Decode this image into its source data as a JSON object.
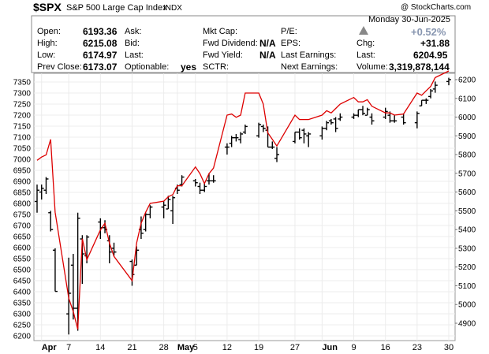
{
  "header": {
    "symbol": "$SPX",
    "name": "S&P 500 Large Cap Index",
    "exchange": "INDX",
    "copyright": "@ StockCharts.com",
    "date": "Monday 30-Jun-2025",
    "open_label": "Open:",
    "open": "6193.36",
    "high_label": "High:",
    "high": "6215.08",
    "low_label": "Low:",
    "low": "6174.97",
    "prev_close_label": "Prev Close:",
    "prev_close": "6173.07",
    "ask_label": "Ask:",
    "bid_label": "Bid:",
    "last_label": "Last:",
    "optionable_label": "Optionable:",
    "optionable": "yes",
    "mktcap_label": "Mkt Cap:",
    "fwd_div_label": "Fwd Dividend:",
    "fwd_div": "N/A",
    "fwd_yield_label": "Fwd Yield:",
    "fwd_yield": "N/A",
    "sctr_label": "SCTR:",
    "pe_label": "P/E:",
    "eps_label": "EPS:",
    "last_earn_label": "Last Earnings:",
    "next_earn_label": "Next Earnings:",
    "pct_change": "+0.52%",
    "chg_label": "Chg:",
    "chg": "+31.88",
    "last2_label": "Last:",
    "last": "6204.95",
    "volume_label": "Volume:",
    "volume": "3,319,878,144",
    "colors": {
      "up": "#888888",
      "pct": "#8896b0"
    }
  },
  "chart_data": {
    "type": "ohlc",
    "x_labels": [
      {
        "label": "Apr",
        "date": "2025-04-01",
        "bold": true
      },
      {
        "label": "7",
        "date": "2025-04-07"
      },
      {
        "label": "14",
        "date": "2025-04-14"
      },
      {
        "label": "21",
        "date": "2025-04-21"
      },
      {
        "label": "28",
        "date": "2025-04-28"
      },
      {
        "label": "May",
        "date": "2025-05-01",
        "bold": true
      },
      {
        "label": "5",
        "date": "2025-05-05"
      },
      {
        "label": "12",
        "date": "2025-05-12"
      },
      {
        "label": "19",
        "date": "2025-05-19"
      },
      {
        "label": "27",
        "date": "2025-05-27"
      },
      {
        "label": "Jun",
        "date": "2025-06-02",
        "bold": true
      },
      {
        "label": "9",
        "date": "2025-06-09"
      },
      {
        "label": "16",
        "date": "2025-06-16"
      },
      {
        "label": "23",
        "date": "2025-06-23"
      },
      {
        "label": "30",
        "date": "2025-06-30"
      }
    ],
    "left_axis": {
      "min": 6170,
      "max": 7400,
      "ticks": [
        6200,
        6250,
        6300,
        6350,
        6400,
        6450,
        6500,
        6550,
        6600,
        6650,
        6700,
        6750,
        6800,
        6850,
        6900,
        6950,
        7000,
        7050,
        7100,
        7150,
        7200,
        7250,
        7300,
        7350
      ]
    },
    "right_axis": {
      "min": 4750,
      "max": 6250,
      "ticks": [
        4900,
        5000,
        5100,
        5200,
        5300,
        5400,
        5500,
        5600,
        5700,
        5800,
        5900,
        6000,
        6100,
        6200
      ]
    },
    "line_color": "#dd0000",
    "bar_color": "#000000",
    "line_series": [
      {
        "date": "2025-03-31",
        "value": 6995
      },
      {
        "date": "2025-04-01",
        "value": 7010
      },
      {
        "date": "2025-04-02",
        "value": 7020
      },
      {
        "date": "2025-04-03",
        "value": 7090
      },
      {
        "date": "2025-04-04",
        "value": 6760
      },
      {
        "date": "2025-04-07",
        "value": 6370
      },
      {
        "date": "2025-04-08",
        "value": 6310
      },
      {
        "date": "2025-04-09",
        "value": 6230
      },
      {
        "date": "2025-04-10",
        "value": 6640
      },
      {
        "date": "2025-04-11",
        "value": 6545
      },
      {
        "date": "2025-04-14",
        "value": 6680
      },
      {
        "date": "2025-04-15",
        "value": 6710
      },
      {
        "date": "2025-04-16",
        "value": 6620
      },
      {
        "date": "2025-04-17",
        "value": 6560
      },
      {
        "date": "2025-04-21",
        "value": 6450
      },
      {
        "date": "2025-04-22",
        "value": 6620
      },
      {
        "date": "2025-04-23",
        "value": 6710
      },
      {
        "date": "2025-04-24",
        "value": 6760
      },
      {
        "date": "2025-04-25",
        "value": 6800
      },
      {
        "date": "2025-04-28",
        "value": 6810
      },
      {
        "date": "2025-04-29",
        "value": 6830
      },
      {
        "date": "2025-04-30",
        "value": 6840
      },
      {
        "date": "2025-05-01",
        "value": 6880
      },
      {
        "date": "2025-05-02",
        "value": 6880
      },
      {
        "date": "2025-05-05",
        "value": 6965
      },
      {
        "date": "2025-05-06",
        "value": 6935
      },
      {
        "date": "2025-05-07",
        "value": 6890
      },
      {
        "date": "2025-05-08",
        "value": 6935
      },
      {
        "date": "2025-05-09",
        "value": 6960
      },
      {
        "date": "2025-05-12",
        "value": 7200
      },
      {
        "date": "2025-05-13",
        "value": 7205
      },
      {
        "date": "2025-05-14",
        "value": 7190
      },
      {
        "date": "2025-05-15",
        "value": 7200
      },
      {
        "date": "2025-05-16",
        "value": 7300
      },
      {
        "date": "2025-05-19",
        "value": 7300
      },
      {
        "date": "2025-05-20",
        "value": 7250
      },
      {
        "date": "2025-05-21",
        "value": 7120
      },
      {
        "date": "2025-05-22",
        "value": 7090
      },
      {
        "date": "2025-05-23",
        "value": 7060
      },
      {
        "date": "2025-05-27",
        "value": 7200
      },
      {
        "date": "2025-05-28",
        "value": 7180
      },
      {
        "date": "2025-05-29",
        "value": 7180
      },
      {
        "date": "2025-05-30",
        "value": 7180
      },
      {
        "date": "2025-06-02",
        "value": 7200
      },
      {
        "date": "2025-06-03",
        "value": 7220
      },
      {
        "date": "2025-06-04",
        "value": 7210
      },
      {
        "date": "2025-06-05",
        "value": 7230
      },
      {
        "date": "2025-06-06",
        "value": 7250
      },
      {
        "date": "2025-06-09",
        "value": 7280
      },
      {
        "date": "2025-06-10",
        "value": 7260
      },
      {
        "date": "2025-06-11",
        "value": 7260
      },
      {
        "date": "2025-06-12",
        "value": 7270
      },
      {
        "date": "2025-06-13",
        "value": 7240
      },
      {
        "date": "2025-06-16",
        "value": 7210
      },
      {
        "date": "2025-06-17",
        "value": 7210
      },
      {
        "date": "2025-06-18",
        "value": 7200
      },
      {
        "date": "2025-06-20",
        "value": 7205
      },
      {
        "date": "2025-06-23",
        "value": 7300
      },
      {
        "date": "2025-06-24",
        "value": 7290
      },
      {
        "date": "2025-06-25",
        "value": 7310
      },
      {
        "date": "2025-06-26",
        "value": 7330
      },
      {
        "date": "2025-06-27",
        "value": 7370
      },
      {
        "date": "2025-06-30",
        "value": 7400
      }
    ],
    "ohlc_series": [
      {
        "date": "2025-03-31",
        "o": 5550,
        "h": 5640,
        "l": 5490,
        "c": 5610
      },
      {
        "date": "2025-04-01",
        "o": 5600,
        "h": 5640,
        "l": 5560,
        "c": 5620
      },
      {
        "date": "2025-04-02",
        "o": 5610,
        "h": 5680,
        "l": 5590,
        "c": 5670
      },
      {
        "date": "2025-04-03",
        "o": 5490,
        "h": 5500,
        "l": 5390,
        "c": 5400
      },
      {
        "date": "2025-04-04",
        "o": 5290,
        "h": 5300,
        "l": 5070,
        "c": 5070
      },
      {
        "date": "2025-04-07",
        "o": 4950,
        "h": 5250,
        "l": 4840,
        "c": 5060
      },
      {
        "date": "2025-04-08",
        "o": 5210,
        "h": 5270,
        "l": 4920,
        "c": 4980
      },
      {
        "date": "2025-04-09",
        "o": 4980,
        "h": 5490,
        "l": 4860,
        "c": 5460
      },
      {
        "date": "2025-04-10",
        "o": 5350,
        "h": 5370,
        "l": 5110,
        "c": 5270
      },
      {
        "date": "2025-04-11",
        "o": 5260,
        "h": 5370,
        "l": 5220,
        "c": 5360
      },
      {
        "date": "2025-04-14",
        "o": 5440,
        "h": 5460,
        "l": 5350,
        "c": 5410
      },
      {
        "date": "2025-04-15",
        "o": 5410,
        "h": 5450,
        "l": 5380,
        "c": 5400
      },
      {
        "date": "2025-04-16",
        "o": 5340,
        "h": 5370,
        "l": 5220,
        "c": 5280
      },
      {
        "date": "2025-04-17",
        "o": 5300,
        "h": 5330,
        "l": 5260,
        "c": 5280
      },
      {
        "date": "2025-04-21",
        "o": 5230,
        "h": 5240,
        "l": 5100,
        "c": 5160
      },
      {
        "date": "2025-04-22",
        "o": 5210,
        "h": 5310,
        "l": 5210,
        "c": 5290
      },
      {
        "date": "2025-04-23",
        "o": 5400,
        "h": 5470,
        "l": 5350,
        "c": 5380
      },
      {
        "date": "2025-04-24",
        "o": 5400,
        "h": 5490,
        "l": 5390,
        "c": 5480
      },
      {
        "date": "2025-04-25",
        "o": 5480,
        "h": 5530,
        "l": 5460,
        "c": 5520
      },
      {
        "date": "2025-04-28",
        "o": 5520,
        "h": 5550,
        "l": 5460,
        "c": 5530
      },
      {
        "date": "2025-04-29",
        "o": 5510,
        "h": 5580,
        "l": 5510,
        "c": 5560
      },
      {
        "date": "2025-04-30",
        "o": 5500,
        "h": 5580,
        "l": 5430,
        "c": 5570
      },
      {
        "date": "2025-05-01",
        "o": 5620,
        "h": 5640,
        "l": 5590,
        "c": 5610
      },
      {
        "date": "2025-05-02",
        "o": 5640,
        "h": 5690,
        "l": 5630,
        "c": 5680
      },
      {
        "date": "2025-05-05",
        "o": 5660,
        "h": 5670,
        "l": 5630,
        "c": 5650
      },
      {
        "date": "2025-05-06",
        "o": 5630,
        "h": 5650,
        "l": 5590,
        "c": 5610
      },
      {
        "date": "2025-05-07",
        "o": 5610,
        "h": 5650,
        "l": 5600,
        "c": 5630
      },
      {
        "date": "2025-05-08",
        "o": 5660,
        "h": 5700,
        "l": 5640,
        "c": 5660
      },
      {
        "date": "2025-05-09",
        "o": 5660,
        "h": 5690,
        "l": 5650,
        "c": 5660
      },
      {
        "date": "2025-05-12",
        "o": 5840,
        "h": 5860,
        "l": 5800,
        "c": 5840
      },
      {
        "date": "2025-05-13",
        "o": 5860,
        "h": 5900,
        "l": 5840,
        "c": 5890
      },
      {
        "date": "2025-05-14",
        "o": 5890,
        "h": 5910,
        "l": 5870,
        "c": 5890
      },
      {
        "date": "2025-05-15",
        "o": 5880,
        "h": 5920,
        "l": 5860,
        "c": 5910
      },
      {
        "date": "2025-05-16",
        "o": 5920,
        "h": 5960,
        "l": 5910,
        "c": 5950
      },
      {
        "date": "2025-05-19",
        "o": 5900,
        "h": 5970,
        "l": 5890,
        "c": 5960
      },
      {
        "date": "2025-05-20",
        "o": 5950,
        "h": 5960,
        "l": 5920,
        "c": 5940
      },
      {
        "date": "2025-05-21",
        "o": 5930,
        "h": 5950,
        "l": 5840,
        "c": 5840
      },
      {
        "date": "2025-05-22",
        "o": 5840,
        "h": 5870,
        "l": 5830,
        "c": 5840
      },
      {
        "date": "2025-05-23",
        "o": 5780,
        "h": 5840,
        "l": 5760,
        "c": 5800
      },
      {
        "date": "2025-05-27",
        "o": 5870,
        "h": 5920,
        "l": 5860,
        "c": 5920
      },
      {
        "date": "2025-05-28",
        "o": 5920,
        "h": 5940,
        "l": 5880,
        "c": 5890
      },
      {
        "date": "2025-05-29",
        "o": 5930,
        "h": 5940,
        "l": 5860,
        "c": 5910
      },
      {
        "date": "2025-05-30",
        "o": 5900,
        "h": 5920,
        "l": 5840,
        "c": 5910
      },
      {
        "date": "2025-06-02",
        "o": 5900,
        "h": 5950,
        "l": 5880,
        "c": 5940
      },
      {
        "date": "2025-06-03",
        "o": 5940,
        "h": 5980,
        "l": 5930,
        "c": 5970
      },
      {
        "date": "2025-06-04",
        "o": 5980,
        "h": 5990,
        "l": 5960,
        "c": 5970
      },
      {
        "date": "2025-06-05",
        "o": 5990,
        "h": 6000,
        "l": 5920,
        "c": 5940
      },
      {
        "date": "2025-06-06",
        "o": 5990,
        "h": 6020,
        "l": 5980,
        "c": 6000
      },
      {
        "date": "2025-06-09",
        "o": 6000,
        "h": 6020,
        "l": 5990,
        "c": 6010
      },
      {
        "date": "2025-06-10",
        "o": 6010,
        "h": 6040,
        "l": 6000,
        "c": 6040
      },
      {
        "date": "2025-06-11",
        "o": 6040,
        "h": 6060,
        "l": 6010,
        "c": 6020
      },
      {
        "date": "2025-06-12",
        "o": 6010,
        "h": 6050,
        "l": 6010,
        "c": 6040
      },
      {
        "date": "2025-06-13",
        "o": 6000,
        "h": 6020,
        "l": 5960,
        "c": 5980
      },
      {
        "date": "2025-06-16",
        "o": 6000,
        "h": 6050,
        "l": 5990,
        "c": 6030
      },
      {
        "date": "2025-06-17",
        "o": 6010,
        "h": 6030,
        "l": 5970,
        "c": 5980
      },
      {
        "date": "2025-06-18",
        "o": 5980,
        "h": 6010,
        "l": 5970,
        "c": 5980
      },
      {
        "date": "2025-06-20",
        "o": 6000,
        "h": 6020,
        "l": 5960,
        "c": 5970
      },
      {
        "date": "2025-06-23",
        "o": 5970,
        "h": 6030,
        "l": 5940,
        "c": 6020
      },
      {
        "date": "2025-06-24",
        "o": 6060,
        "h": 6090,
        "l": 6060,
        "c": 6090
      },
      {
        "date": "2025-06-25",
        "o": 6090,
        "h": 6100,
        "l": 6070,
        "c": 6090
      },
      {
        "date": "2025-06-26",
        "o": 6110,
        "h": 6150,
        "l": 6100,
        "c": 6140
      },
      {
        "date": "2025-06-27",
        "o": 6150,
        "h": 6190,
        "l": 6130,
        "c": 6170
      },
      {
        "date": "2025-06-30",
        "o": 6190,
        "h": 6210,
        "l": 6170,
        "c": 6200
      }
    ]
  }
}
